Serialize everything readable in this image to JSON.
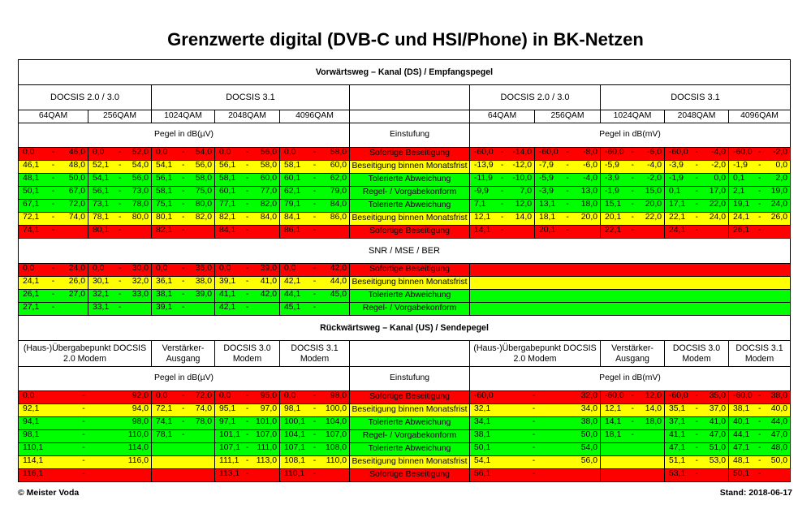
{
  "title": "Grenzwerte digital (DVB-C und HSI/Phone) in BK-Netzen",
  "footer": {
    "left": "© Meister Voda",
    "right": "Stand: 2018-06-17"
  },
  "colors": {
    "red": "#ff0000",
    "yellow": "#ffff00",
    "green": "#00ff00"
  },
  "ds": {
    "title": "Vorwärtsweg – Kanal (DS) / Empfangspegel",
    "group_docsis30": "DOCSIS 2.0 / 3.0",
    "group_docsis31": "DOCSIS 3.1",
    "qam": [
      "64QAM",
      "256QAM",
      "1024QAM",
      "2048QAM",
      "4096QAM"
    ],
    "pegel_uv": "Pegel in dB(µV)",
    "pegel_mv": "Pegel in dB(mV)",
    "einstufung": "Einstufung",
    "rows": [
      {
        "color": "red",
        "label": "Sofortige Beseitigung",
        "left": [
          [
            "0,0",
            "46,0"
          ],
          [
            "0,0",
            "52,0"
          ],
          [
            "0,0",
            "54,0"
          ],
          [
            "0,0",
            "56,0"
          ],
          [
            "0,0",
            "58,0"
          ]
        ],
        "right": [
          [
            "-60,0",
            "-14,0"
          ],
          [
            "-60,0",
            "-8,0"
          ],
          [
            "-60,0",
            "-6,0"
          ],
          [
            "-60,0",
            "-4,0"
          ],
          [
            "-60,0",
            "-2,0"
          ]
        ]
      },
      {
        "color": "yellow",
        "label": "Beseitigung binnen Monatsfrist",
        "left": [
          [
            "46,1",
            "48,0"
          ],
          [
            "52,1",
            "54,0"
          ],
          [
            "54,1",
            "56,0"
          ],
          [
            "56,1",
            "58,0"
          ],
          [
            "58,1",
            "60,0"
          ]
        ],
        "right": [
          [
            "-13,9",
            "-12,0"
          ],
          [
            "-7,9",
            "-6,0"
          ],
          [
            "-5,9",
            "-4,0"
          ],
          [
            "-3,9",
            "-2,0"
          ],
          [
            "-1,9",
            "0,0"
          ]
        ]
      },
      {
        "color": "green",
        "label": "Tolerierte Abweichung",
        "left": [
          [
            "48,1",
            "50,0"
          ],
          [
            "54,1",
            "56,0"
          ],
          [
            "56,1",
            "58,0"
          ],
          [
            "58,1",
            "60,0"
          ],
          [
            "60,1",
            "62,0"
          ]
        ],
        "right": [
          [
            "-11,9",
            "-10,0"
          ],
          [
            "-5,9",
            "-4,0"
          ],
          [
            "-3,9",
            "-2,0"
          ],
          [
            "-1,9",
            "0,0"
          ],
          [
            "0,1",
            "2,0"
          ]
        ]
      },
      {
        "color": "green",
        "label": "Regel- / Vorgabekonform",
        "left": [
          [
            "50,1",
            "67,0"
          ],
          [
            "56,1",
            "73,0"
          ],
          [
            "58,1",
            "75,0"
          ],
          [
            "60,1",
            "77,0"
          ],
          [
            "62,1",
            "79,0"
          ]
        ],
        "right": [
          [
            "-9,9",
            "7,0"
          ],
          [
            "-3,9",
            "13,0"
          ],
          [
            "-1,9",
            "15,0"
          ],
          [
            "0,1",
            "17,0"
          ],
          [
            "2,1",
            "19,0"
          ]
        ]
      },
      {
        "color": "green",
        "label": "Tolerierte Abweichung",
        "left": [
          [
            "67,1",
            "72,0"
          ],
          [
            "73,1",
            "78,0"
          ],
          [
            "75,1",
            "80,0"
          ],
          [
            "77,1",
            "82,0"
          ],
          [
            "79,1",
            "84,0"
          ]
        ],
        "right": [
          [
            "7,1",
            "12,0"
          ],
          [
            "13,1",
            "18,0"
          ],
          [
            "15,1",
            "20,0"
          ],
          [
            "17,1",
            "22,0"
          ],
          [
            "19,1",
            "24,0"
          ]
        ]
      },
      {
        "color": "yellow",
        "label": "Beseitigung binnen Monatsfrist",
        "left": [
          [
            "72,1",
            "74,0"
          ],
          [
            "78,1",
            "80,0"
          ],
          [
            "80,1",
            "82,0"
          ],
          [
            "82,1",
            "84,0"
          ],
          [
            "84,1",
            "86,0"
          ]
        ],
        "right": [
          [
            "12,1",
            "14,0"
          ],
          [
            "18,1",
            "20,0"
          ],
          [
            "20,1",
            "22,0"
          ],
          [
            "22,1",
            "24,0"
          ],
          [
            "24,1",
            "26,0"
          ]
        ]
      },
      {
        "color": "red",
        "label": "Sofortige Beseitigung",
        "left": [
          [
            "74,1",
            ""
          ],
          [
            "80,1",
            ""
          ],
          [
            "82,1",
            ""
          ],
          [
            "84,1",
            ""
          ],
          [
            "86,1",
            ""
          ]
        ],
        "right": [
          [
            "14,1",
            ""
          ],
          [
            "20,1",
            ""
          ],
          [
            "22,1",
            ""
          ],
          [
            "24,1",
            ""
          ],
          [
            "26,1",
            ""
          ]
        ]
      }
    ]
  },
  "snr": {
    "title": "SNR / MSE / BER",
    "rows": [
      {
        "color": "red",
        "label": "Sofortige Beseitigung",
        "left": [
          [
            "0,0",
            "24,0"
          ],
          [
            "0,0",
            "30,0"
          ],
          [
            "0,0",
            "36,0"
          ],
          [
            "0,0",
            "39,0"
          ],
          [
            "0,0",
            "42,0"
          ]
        ]
      },
      {
        "color": "yellow",
        "label": "Beseitigung binnen Monatsfrist",
        "left": [
          [
            "24,1",
            "26,0"
          ],
          [
            "30,1",
            "32,0"
          ],
          [
            "36,1",
            "38,0"
          ],
          [
            "39,1",
            "41,0"
          ],
          [
            "42,1",
            "44,0"
          ]
        ]
      },
      {
        "color": "green",
        "label": "Tolerierte Abweichung",
        "left": [
          [
            "26,1",
            "27,0"
          ],
          [
            "32,1",
            "33,0"
          ],
          [
            "38,1",
            "39,0"
          ],
          [
            "41,1",
            "42,0"
          ],
          [
            "44,1",
            "45,0"
          ]
        ]
      },
      {
        "color": "green",
        "label": "Regel- / Vorgabekonform",
        "left": [
          [
            "27,1",
            ""
          ],
          [
            "33,1",
            ""
          ],
          [
            "39,1",
            ""
          ],
          [
            "42,1",
            ""
          ],
          [
            "45,1",
            ""
          ]
        ]
      }
    ]
  },
  "us": {
    "title": "Rückwärtsweg – Kanal (US) / Sendepegel",
    "headers": [
      "(Haus-)Übergabepunkt DOCSIS 2.0 Modem",
      "Verstärker-Ausgang",
      "DOCSIS 3.0 Modem",
      "DOCSIS 3.1 Modem"
    ],
    "pegel_uv": "Pegel in dB(µV)",
    "pegel_mv": "Pegel in dB(mV)",
    "einstufung": "Einstufung",
    "rows": [
      {
        "color": "red",
        "label": "Sofortige Beseitigung",
        "left": [
          [
            "0,0",
            "92,0"
          ],
          [
            "0,0",
            "72,0"
          ],
          [
            "0,0",
            "95,0"
          ],
          [
            "0,0",
            "98,0"
          ]
        ],
        "right": [
          [
            "-60,0",
            "32,0"
          ],
          [
            "-60,0",
            "12,0"
          ],
          [
            "-60,0",
            "35,0"
          ],
          [
            "-60,0",
            "38,0"
          ]
        ]
      },
      {
        "color": "yellow",
        "label": "Beseitigung binnen Monatsfrist",
        "left": [
          [
            "92,1",
            "94,0"
          ],
          [
            "72,1",
            "74,0"
          ],
          [
            "95,1",
            "97,0"
          ],
          [
            "98,1",
            "100,0"
          ]
        ],
        "right": [
          [
            "32,1",
            "34,0"
          ],
          [
            "12,1",
            "14,0"
          ],
          [
            "35,1",
            "37,0"
          ],
          [
            "38,1",
            "40,0"
          ]
        ]
      },
      {
        "color": "green",
        "label": "Tolerierte Abweichung",
        "left": [
          [
            "94,1",
            "98,0"
          ],
          [
            "74,1",
            "78,0"
          ],
          [
            "97,1",
            "101,0"
          ],
          [
            "100,1",
            "104,0"
          ]
        ],
        "right": [
          [
            "34,1",
            "38,0"
          ],
          [
            "14,1",
            "18,0"
          ],
          [
            "37,1",
            "41,0"
          ],
          [
            "40,1",
            "44,0"
          ]
        ]
      },
      {
        "color": "green",
        "label": "Regel- / Vorgabekonform",
        "left": [
          [
            "98,1",
            "110,0"
          ],
          [
            "78,1",
            ""
          ],
          [
            "101,1",
            "107,0"
          ],
          [
            "104,1",
            "107,0"
          ]
        ],
        "right": [
          [
            "38,1",
            "50,0"
          ],
          [
            "18,1",
            ""
          ],
          [
            "41,1",
            "47,0"
          ],
          [
            "44,1",
            "47,0"
          ]
        ]
      },
      {
        "color": "green",
        "label": "Tolerierte Abweichung",
        "left": [
          [
            "110,1",
            "114,0"
          ],
          null,
          [
            "107,1",
            "111,0"
          ],
          [
            "107,1",
            "108,0"
          ]
        ],
        "right": [
          [
            "50,1",
            "54,0"
          ],
          null,
          [
            "47,1",
            "51,0"
          ],
          [
            "47,1",
            "48,0"
          ]
        ]
      },
      {
        "color": "yellow",
        "label": "Beseitigung binnen Monatsfrist",
        "left": [
          [
            "114,1",
            "116,0"
          ],
          null,
          [
            "111,1",
            "113,0"
          ],
          [
            "108,1",
            "110,0"
          ]
        ],
        "right": [
          [
            "54,1",
            "56,0"
          ],
          null,
          [
            "51,1",
            "53,0"
          ],
          [
            "48,1",
            "50,0"
          ]
        ]
      },
      {
        "color": "red",
        "label": "Sofortige Beseitigung",
        "left": [
          [
            "116,1",
            ""
          ],
          null,
          [
            "113,1",
            ""
          ],
          [
            "110,1",
            ""
          ]
        ],
        "right": [
          [
            "56,1",
            ""
          ],
          null,
          [
            "53,1",
            ""
          ],
          [
            "50,1",
            ""
          ]
        ]
      }
    ]
  }
}
